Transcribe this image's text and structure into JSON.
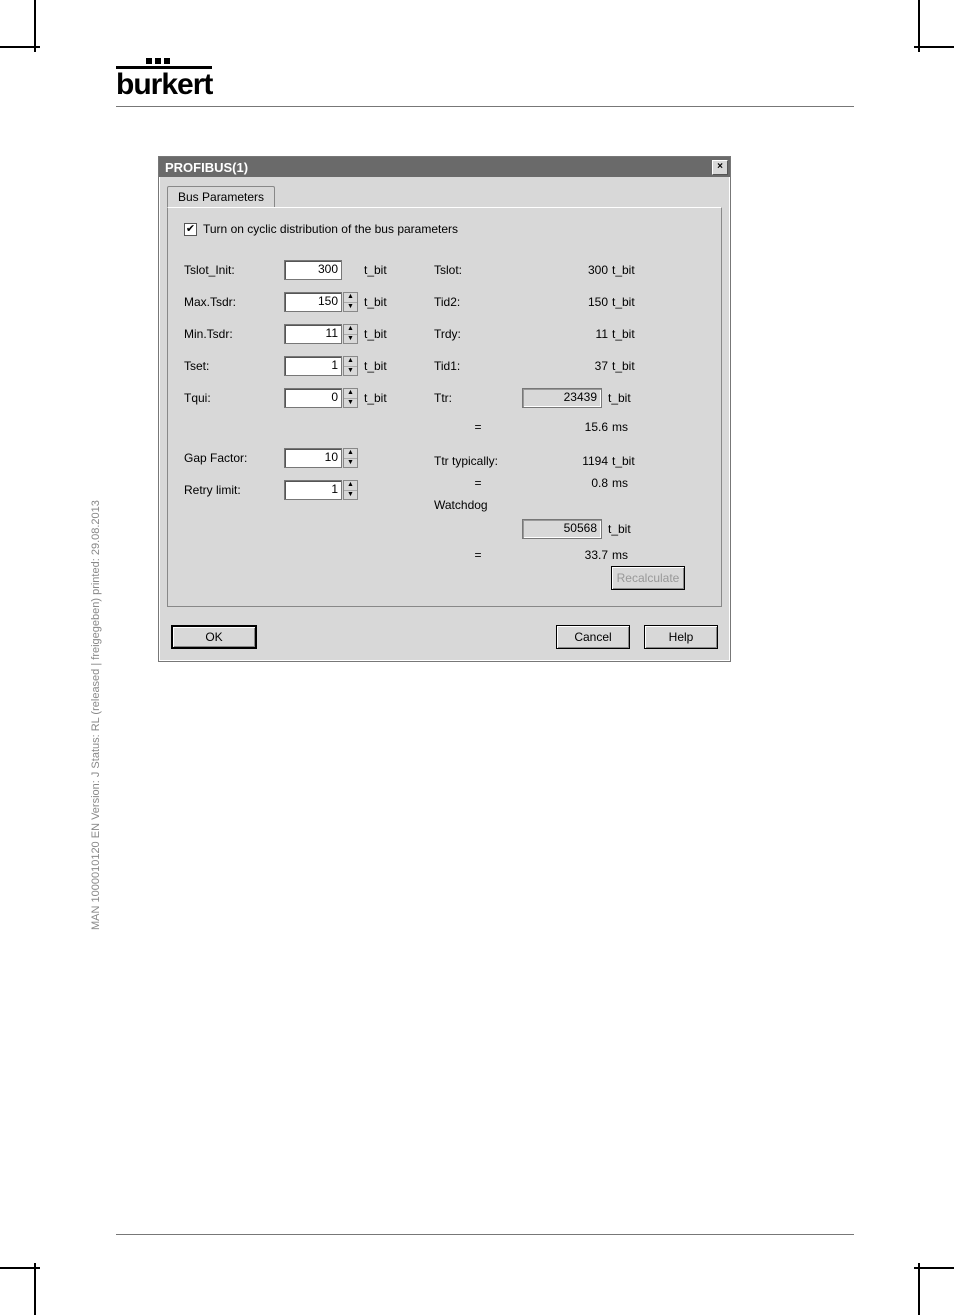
{
  "logo_text": "burkert",
  "side_note": "MAN 1000010120 EN Version: J Status: RL (released | freigegeben) printed: 29.08.2013",
  "dialog": {
    "title": "PROFIBUS(1)",
    "tab_label": "Bus Parameters",
    "checkbox_label": "Turn on cyclic distribution of the bus parameters",
    "checkbox_checked_glyph": "✔",
    "left_params": [
      {
        "label": "Tslot_Init:",
        "value": "300",
        "unit": "t_bit",
        "spin": false
      },
      {
        "label": "Max.Tsdr:",
        "value": "150",
        "unit": "t_bit",
        "spin": true
      },
      {
        "label": "Min.Tsdr:",
        "value": "11",
        "unit": "t_bit",
        "spin": true
      },
      {
        "label": "Tset:",
        "value": "1",
        "unit": "t_bit",
        "spin": true
      },
      {
        "label": "Tqui:",
        "value": "0",
        "unit": "t_bit",
        "spin": true
      }
    ],
    "left_params2": [
      {
        "label": "Gap Factor:",
        "value": "10",
        "spin": true
      },
      {
        "label": "Retry limit:",
        "value": "1",
        "spin": true
      }
    ],
    "right_params": [
      {
        "label": "Tslot:",
        "value": "300",
        "unit": "t_bit"
      },
      {
        "label": "Tid2:",
        "value": "150",
        "unit": "t_bit"
      },
      {
        "label": "Trdy:",
        "value": "11",
        "unit": "t_bit"
      },
      {
        "label": "Tid1:",
        "value": "37",
        "unit": "t_bit"
      }
    ],
    "ttr": {
      "label": "Ttr:",
      "value": "23439",
      "unit": "t_bit",
      "eq": "=",
      "ms_value": "15.6",
      "ms_unit": "ms"
    },
    "ttr_typ": {
      "label": "Ttr typically:",
      "value": "1194",
      "unit": "t_bit",
      "eq": "=",
      "ms_value": "0.8",
      "ms_unit": "ms"
    },
    "watchdog": {
      "label": "Watchdog",
      "value": "50568",
      "unit": "t_bit",
      "eq": "=",
      "ms_value": "33.7",
      "ms_unit": "ms"
    },
    "recalc_label": "Recalculate",
    "ok_label": "OK",
    "cancel_label": "Cancel",
    "help_label": "Help"
  }
}
